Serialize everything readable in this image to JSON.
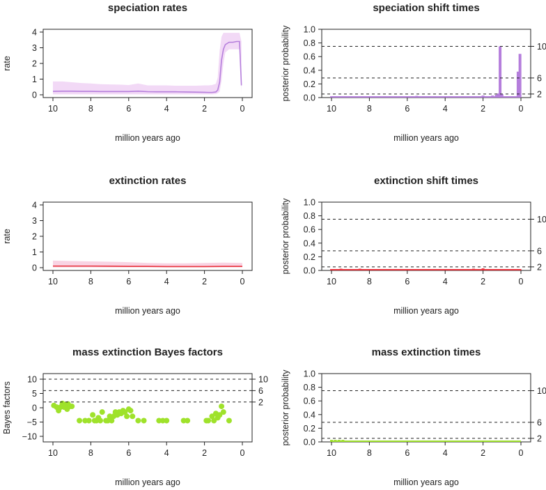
{
  "chart_data": [
    {
      "id": "spec_rates",
      "type": "line",
      "title": "speciation rates",
      "xlabel": "million years ago",
      "ylabel": "rate",
      "xlim": [
        10,
        0
      ],
      "ylim": [
        0,
        4
      ],
      "xticks": [
        "10",
        "8",
        "6",
        "4",
        "2",
        "0"
      ],
      "yticks": [
        "0",
        "1",
        "2",
        "3",
        "4"
      ],
      "color": "#b57edc",
      "band_color": "#f2d9f6",
      "x": [
        10,
        9.5,
        9,
        8.5,
        8,
        7.5,
        7,
        6.5,
        6,
        5.5,
        5,
        4.5,
        4,
        3.5,
        3,
        2.5,
        2,
        1.8,
        1.6,
        1.4,
        1.3,
        1.2,
        1.1,
        1.0,
        0.9,
        0.7,
        0.5,
        0.3,
        0.15,
        0.05
      ],
      "mean": [
        0.22,
        0.23,
        0.23,
        0.22,
        0.22,
        0.21,
        0.21,
        0.21,
        0.21,
        0.23,
        0.2,
        0.19,
        0.19,
        0.19,
        0.18,
        0.17,
        0.16,
        0.15,
        0.15,
        0.18,
        0.3,
        0.8,
        2.2,
        2.9,
        3.2,
        3.35,
        3.35,
        3.4,
        3.4,
        0.6
      ],
      "lower": [
        0.03,
        0.03,
        0.03,
        0.03,
        0.03,
        0.03,
        0.03,
        0.03,
        0.03,
        0.03,
        0.03,
        0.03,
        0.03,
        0.03,
        0.03,
        0.03,
        0.03,
        0.03,
        0.03,
        0.05,
        0.1,
        0.2,
        0.9,
        2.0,
        2.7,
        2.9,
        2.9,
        2.9,
        2.9,
        0.1
      ],
      "upper": [
        0.85,
        0.85,
        0.8,
        0.75,
        0.72,
        0.68,
        0.66,
        0.65,
        0.62,
        0.72,
        0.6,
        0.6,
        0.6,
        0.58,
        0.58,
        0.58,
        0.6,
        0.6,
        0.62,
        0.7,
        1.1,
        2.8,
        3.7,
        3.95,
        3.95,
        3.95,
        3.95,
        3.95,
        3.95,
        3.4
      ]
    },
    {
      "id": "spec_shift",
      "type": "bar",
      "title": "speciation shift times",
      "xlabel": "million years ago",
      "ylabel": "posterior probability",
      "xlim": [
        10,
        0
      ],
      "ylim": [
        0,
        1
      ],
      "xticks": [
        "10",
        "8",
        "6",
        "4",
        "2",
        "0"
      ],
      "yticks": [
        "0.0",
        "0.2",
        "0.4",
        "0.6",
        "0.8",
        "1.0"
      ],
      "bf_lines": [
        {
          "value": 0.0523,
          "label": "2"
        },
        {
          "value": 0.2872,
          "label": "6"
        },
        {
          "value": 0.75,
          "label": "10"
        }
      ],
      "color": "#b57edc",
      "bins_x": [
        10,
        9.5,
        9,
        8.5,
        8,
        7.5,
        7,
        6.5,
        6,
        5.5,
        5,
        4.5,
        4,
        3.5,
        3,
        2.5,
        2,
        1.5,
        1.3,
        1.2,
        1.1,
        1.0,
        0.3,
        0.15,
        0.05
      ],
      "bins_y": [
        0.02,
        0.02,
        0.015,
        0.015,
        0.015,
        0.02,
        0.02,
        0.02,
        0.015,
        0.025,
        0.015,
        0.015,
        0.015,
        0.02,
        0.02,
        0.02,
        0.03,
        0.03,
        0.04,
        0.06,
        0.75,
        0.05,
        0.02,
        0.38,
        0.64
      ]
    },
    {
      "id": "ext_rates",
      "type": "line",
      "title": "extinction rates",
      "xlabel": "million years ago",
      "ylabel": "rate",
      "xlim": [
        10,
        0
      ],
      "ylim": [
        0,
        4
      ],
      "xticks": [
        "10",
        "8",
        "6",
        "4",
        "2",
        "0"
      ],
      "yticks": [
        "0",
        "1",
        "2",
        "3",
        "4"
      ],
      "color": "#e8303a",
      "band_color": "#f9d3e3",
      "x": [
        10,
        9,
        8,
        7,
        6,
        5,
        4,
        3,
        2,
        1,
        0
      ],
      "mean": [
        0.1,
        0.1,
        0.1,
        0.09,
        0.08,
        0.08,
        0.07,
        0.07,
        0.07,
        0.08,
        0.08
      ],
      "lower": [
        0.02,
        0.02,
        0.02,
        0.02,
        0.02,
        0.02,
        0.02,
        0.02,
        0.02,
        0.02,
        0.02
      ],
      "upper": [
        0.45,
        0.42,
        0.4,
        0.38,
        0.35,
        0.3,
        0.28,
        0.28,
        0.3,
        0.32,
        0.3
      ]
    },
    {
      "id": "ext_shift",
      "type": "bar",
      "title": "extinction shift times",
      "xlabel": "million years ago",
      "ylabel": "posterior probability",
      "xlim": [
        10,
        0
      ],
      "ylim": [
        0,
        1
      ],
      "xticks": [
        "10",
        "8",
        "6",
        "4",
        "2",
        "0"
      ],
      "yticks": [
        "0.0",
        "0.2",
        "0.4",
        "0.6",
        "0.8",
        "1.0"
      ],
      "bf_lines": [
        {
          "value": 0.0523,
          "label": "2"
        },
        {
          "value": 0.2872,
          "label": "6"
        },
        {
          "value": 0.75,
          "label": "10"
        }
      ],
      "color": "#e8303a",
      "bins_x": [
        10,
        9.5,
        9,
        8.5,
        8,
        7.5,
        7,
        6.5,
        6,
        5.5,
        5,
        4.5,
        4,
        3.5,
        3,
        2.5,
        2,
        1.5,
        1,
        0.5,
        0.05
      ],
      "bins_y": [
        0.02,
        0.025,
        0.02,
        0.025,
        0.02,
        0.02,
        0.02,
        0.02,
        0.02,
        0.02,
        0.02,
        0.02,
        0.02,
        0.02,
        0.02,
        0.025,
        0.03,
        0.02,
        0.02,
        0.02,
        0.02
      ]
    },
    {
      "id": "mass_bf",
      "type": "scatter",
      "title": "mass extinction Bayes factors",
      "xlabel": "million years ago",
      "ylabel": "Bayes factors",
      "xlim": [
        10,
        0
      ],
      "ylim": [
        -10,
        10
      ],
      "xticks": [
        "10",
        "8",
        "6",
        "4",
        "2",
        "0"
      ],
      "yticks": [
        "−10",
        "−5",
        "0",
        "5",
        "10"
      ],
      "bf_lines": [
        {
          "value": 2,
          "label": "2"
        },
        {
          "value": 6,
          "label": "6"
        },
        {
          "value": 10,
          "label": "10"
        }
      ],
      "color": "#9fe22b",
      "x": [
        9.95,
        9.8,
        9.7,
        9.6,
        9.5,
        9.4,
        9.3,
        9.25,
        9.2,
        9.1,
        9.0,
        8.6,
        8.3,
        8.1,
        7.9,
        7.8,
        7.7,
        7.6,
        7.5,
        7.4,
        7.2,
        7.1,
        7.0,
        6.9,
        6.8,
        6.7,
        6.6,
        6.5,
        6.4,
        6.3,
        6.2,
        6.1,
        6.0,
        5.9,
        5.8,
        5.5,
        5.2,
        4.4,
        4.2,
        4.0,
        3.1,
        2.9,
        1.9,
        1.8,
        1.6,
        1.5,
        1.4,
        1.3,
        1.2,
        1.1,
        1.0,
        0.7
      ],
      "y": [
        0.8,
        0.2,
        -1.0,
        0.2,
        1.5,
        0.2,
        1.2,
        -0.5,
        1.3,
        0.5,
        0.5,
        -4.5,
        -4.5,
        -4.5,
        -2.5,
        -4.5,
        -4.5,
        -3.5,
        -4.5,
        -1.5,
        -4.5,
        -4.5,
        -3.0,
        -4.5,
        -3.0,
        -1.5,
        -2.5,
        -1.5,
        -2.0,
        -1.0,
        -1.5,
        -3.0,
        -0.5,
        -1.0,
        -3.0,
        -4.5,
        -4.5,
        -4.5,
        -4.5,
        -4.5,
        -4.5,
        -4.5,
        -4.5,
        -4.5,
        -3.0,
        -4.5,
        -2.0,
        -3.5,
        -2.5,
        0.5,
        -1.5,
        -4.5
      ]
    },
    {
      "id": "mass_times",
      "type": "bar",
      "title": "mass extinction times",
      "xlabel": "million years ago",
      "ylabel": "posterior probability",
      "xlim": [
        10,
        0
      ],
      "ylim": [
        0,
        1
      ],
      "xticks": [
        "10",
        "8",
        "6",
        "4",
        "2",
        "0"
      ],
      "yticks": [
        "0.0",
        "0.2",
        "0.4",
        "0.6",
        "0.8",
        "1.0"
      ],
      "bf_lines": [
        {
          "value": 0.0523,
          "label": "2"
        },
        {
          "value": 0.2872,
          "label": "6"
        },
        {
          "value": 0.75,
          "label": "10"
        }
      ],
      "color": "#9fe22b",
      "bins_x": [
        10,
        9.8,
        9.6,
        9.4,
        6.0,
        1.1
      ],
      "bins_y": [
        0.03,
        0.03,
        0.03,
        0.03,
        0.015,
        0.02
      ]
    }
  ]
}
